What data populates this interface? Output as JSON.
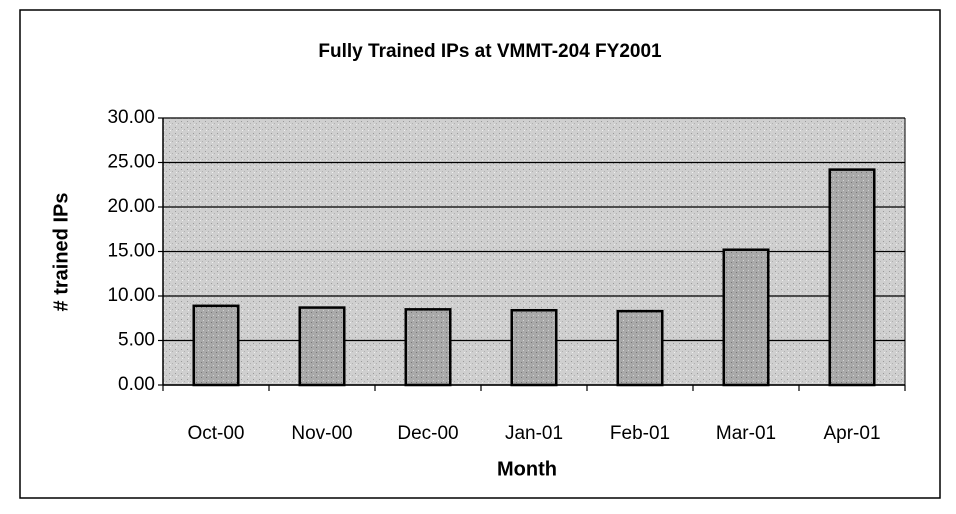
{
  "chart_data": {
    "type": "bar",
    "title": "Fully Trained IPs at VMMT-204 FY2001",
    "x_label": "Month",
    "y_label": "# trained IPs",
    "categories": [
      "Oct-00",
      "Nov-00",
      "Dec-00",
      "Jan-01",
      "Feb-01",
      "Mar-01",
      "Apr-01"
    ],
    "values": [
      8.9,
      8.7,
      8.5,
      8.4,
      8.3,
      15.2,
      24.2
    ],
    "color": "#a9a9a9",
    "ylim": [
      0,
      30
    ],
    "yticks": [
      {
        "value": 0,
        "label": "0.00"
      },
      {
        "value": 5,
        "label": "5.00"
      },
      {
        "value": 10,
        "label": "10.00"
      },
      {
        "value": 15,
        "label": "15.00"
      },
      {
        "value": 20,
        "label": "20.00"
      },
      {
        "value": 25,
        "label": "25.00"
      },
      {
        "value": 30,
        "label": "30.00"
      }
    ],
    "grid": true
  }
}
